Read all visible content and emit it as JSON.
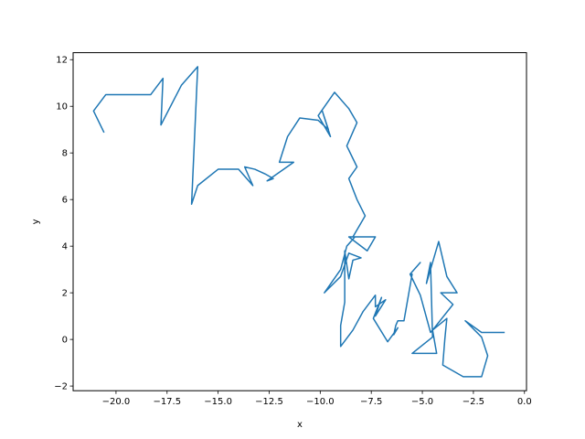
{
  "chart_data": {
    "type": "line",
    "title": "",
    "xlabel": "x",
    "ylabel": "y",
    "xlim": [
      -22.1,
      0.1
    ],
    "ylim": [
      -2.2,
      12.3
    ],
    "grid": false,
    "legend": "none",
    "xticks": [
      -20.0,
      -17.5,
      -15.0,
      -12.5,
      -10.0,
      -7.5,
      -5.0,
      -2.5,
      0.0
    ],
    "xtick_labels": [
      "−20.0",
      "−17.5",
      "−15.0",
      "−12.5",
      "−10.0",
      "−7.5",
      "−5.0",
      "−2.5",
      "0.0"
    ],
    "yticks": [
      -2,
      0,
      2,
      4,
      6,
      8,
      10,
      12
    ],
    "ytick_labels": [
      "−2",
      "0",
      "2",
      "4",
      "6",
      "8",
      "10",
      "12"
    ],
    "series": [
      {
        "color": "#1f77b4",
        "x": [
          -1.0,
          -2.1,
          -2.9,
          -2.1,
          -1.8,
          -2.1,
          -3.0,
          -4.0,
          -3.9,
          -3.8,
          -4.5,
          -4.3,
          -5.5,
          -4.5,
          -4.6,
          -4.8,
          -4.2,
          -3.8,
          -3.3,
          -4.1,
          -3.5,
          -4.5,
          -4.6,
          -5.1,
          -5.6,
          -5.1,
          -5.6,
          -5.5,
          -5.9,
          -6.2,
          -6.3,
          -6.4,
          -6.2,
          -6.7,
          -7.4,
          -7.0,
          -7.3,
          -6.8,
          -7.3,
          -7.3,
          -7.9,
          -8.4,
          -9.0,
          -9.0,
          -8.8,
          -8.8,
          -8.6,
          -8.4,
          -8.0,
          -8.6,
          -9.0,
          -9.8,
          -9.0,
          -8.7,
          -8.3,
          -8.6,
          -7.7,
          -7.3,
          -8.4,
          -7.8,
          -8.2,
          -8.6,
          -8.2,
          -8.7,
          -8.2,
          -8.6,
          -9.3,
          -10.1,
          -9.5,
          -9.9,
          -9.6,
          -10.1,
          -11.0,
          -11.6,
          -12.0,
          -11.3,
          -12.6,
          -12.3,
          -12.7,
          -13.2,
          -13.7,
          -13.3,
          -14.0,
          -15.0,
          -16.0,
          -16.0,
          -16.3,
          -16.0,
          -16.8,
          -17.8,
          -17.7,
          -18.3,
          -20.5,
          -21.1,
          -20.6
        ],
        "y": [
          0.3,
          0.3,
          0.8,
          0.1,
          -0.7,
          -1.6,
          -1.6,
          -1.1,
          0.0,
          0.9,
          0.4,
          -0.6,
          -0.6,
          0.1,
          3.3,
          2.4,
          4.2,
          2.7,
          2.0,
          2.0,
          1.5,
          0.4,
          0.3,
          1.9,
          2.8,
          3.3,
          2.8,
          2.8,
          0.8,
          0.8,
          0.6,
          0.2,
          0.5,
          -0.1,
          0.9,
          1.8,
          1.0,
          1.7,
          1.4,
          1.9,
          1.2,
          0.4,
          -0.3,
          0.6,
          1.6,
          3.8,
          2.6,
          3.4,
          3.5,
          3.7,
          2.7,
          2.0,
          3.0,
          4.0,
          4.4,
          4.4,
          3.8,
          4.4,
          4.4,
          5.3,
          6.0,
          6.9,
          7.4,
          8.3,
          9.3,
          9.9,
          10.6,
          9.6,
          8.7,
          9.8,
          9.0,
          9.4,
          9.5,
          8.7,
          7.6,
          7.6,
          6.8,
          6.9,
          7.1,
          7.3,
          7.4,
          6.6,
          7.3,
          7.3,
          6.6,
          6.6,
          5.8,
          11.7,
          10.9,
          9.2,
          11.2,
          10.5,
          10.5,
          9.8,
          8.9
        ]
      }
    ]
  }
}
